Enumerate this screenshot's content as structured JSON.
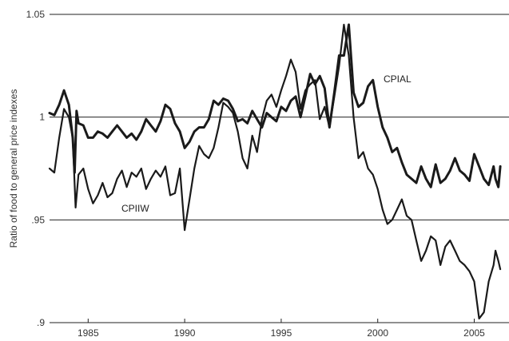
{
  "chart_data": {
    "type": "line",
    "title": "",
    "xlabel": "",
    "ylabel": "Ratio of food to general price indexes",
    "xlim": [
      1983.0,
      2006.8
    ],
    "ylim": [
      0.9,
      1.05
    ],
    "grid": "horizontal",
    "legend": "inline labels",
    "x_ticks": [
      1985,
      1990,
      1995,
      2000,
      2005
    ],
    "x_tick_labels": [
      "1985",
      "1990",
      "1995",
      "2000",
      "2005"
    ],
    "y_ticks": [
      0.9,
      0.95,
      1.0,
      1.05
    ],
    "y_tick_labels": [
      ".9",
      ".95",
      "1",
      "1.05"
    ],
    "series": [
      {
        "name": "CPIAL",
        "color": "#1a1a1a",
        "x": [
          1983.0,
          1983.25,
          1983.5,
          1983.75,
          1984.0,
          1984.2,
          1984.3,
          1984.4,
          1984.5,
          1984.75,
          1985.0,
          1985.25,
          1985.5,
          1985.75,
          1986.0,
          1986.25,
          1986.5,
          1986.75,
          1987.0,
          1987.25,
          1987.5,
          1987.75,
          1988.0,
          1988.25,
          1988.5,
          1988.75,
          1989.0,
          1989.25,
          1989.5,
          1989.75,
          1990.0,
          1990.25,
          1990.5,
          1990.75,
          1991.0,
          1991.25,
          1991.5,
          1991.75,
          1992.0,
          1992.25,
          1992.5,
          1992.75,
          1993.0,
          1993.25,
          1993.5,
          1993.75,
          1994.0,
          1994.25,
          1994.5,
          1994.75,
          1995.0,
          1995.25,
          1995.5,
          1995.75,
          1996.0,
          1996.25,
          1996.5,
          1996.75,
          1997.0,
          1997.25,
          1997.5,
          1997.75,
          1998.0,
          1998.25,
          1998.5,
          1998.75,
          1999.0,
          1999.25,
          1999.5,
          1999.75,
          2000.0,
          2000.25,
          2000.5,
          2000.75,
          2001.0,
          2001.25,
          2001.5,
          2001.75,
          2002.0,
          2002.25,
          2002.5,
          2002.75,
          2003.0,
          2003.25,
          2003.5,
          2003.75,
          2004.0,
          2004.25,
          2004.5,
          2004.75,
          2005.0,
          2005.25,
          2005.5,
          2005.75,
          2006.0,
          2006.1,
          2006.25,
          2006.35
        ],
        "values": [
          1.002,
          1.001,
          1.006,
          1.013,
          1.006,
          0.99,
          0.973,
          1.003,
          0.997,
          0.996,
          0.99,
          0.99,
          0.993,
          0.992,
          0.99,
          0.993,
          0.996,
          0.993,
          0.99,
          0.992,
          0.989,
          0.993,
          0.999,
          0.996,
          0.993,
          0.998,
          1.006,
          1.004,
          0.997,
          0.993,
          0.985,
          0.988,
          0.993,
          0.995,
          0.995,
          0.999,
          1.008,
          1.006,
          1.009,
          1.008,
          1.004,
          0.998,
          0.999,
          0.997,
          1.003,
          0.999,
          0.995,
          1.002,
          1.0,
          0.998,
          1.005,
          1.003,
          1.008,
          1.01,
          1.0,
          1.01,
          1.021,
          1.016,
          1.02,
          1.014,
          0.995,
          1.012,
          1.03,
          1.03,
          1.045,
          1.012,
          1.005,
          1.007,
          1.015,
          1.018,
          1.005,
          0.995,
          0.99,
          0.983,
          0.985,
          0.978,
          0.972,
          0.97,
          0.968,
          0.976,
          0.97,
          0.966,
          0.977,
          0.968,
          0.97,
          0.974,
          0.98,
          0.974,
          0.972,
          0.969,
          0.982,
          0.976,
          0.97,
          0.967,
          0.976,
          0.97,
          0.966,
          0.976
        ]
      },
      {
        "name": "CPIIW",
        "color": "#1a1a1a",
        "x": [
          1983.0,
          1983.25,
          1983.5,
          1983.75,
          1984.0,
          1984.2,
          1984.35,
          1984.5,
          1984.75,
          1985.0,
          1985.25,
          1985.5,
          1985.75,
          1986.0,
          1986.25,
          1986.5,
          1986.75,
          1987.0,
          1987.25,
          1987.5,
          1987.75,
          1988.0,
          1988.25,
          1988.5,
          1988.75,
          1989.0,
          1989.25,
          1989.5,
          1989.75,
          1990.0,
          1990.25,
          1990.5,
          1990.75,
          1991.0,
          1991.25,
          1991.5,
          1991.75,
          1992.0,
          1992.25,
          1992.5,
          1992.75,
          1993.0,
          1993.25,
          1993.5,
          1993.75,
          1994.0,
          1994.25,
          1994.5,
          1994.75,
          1995.0,
          1995.25,
          1995.5,
          1995.75,
          1996.0,
          1996.25,
          1996.5,
          1996.75,
          1997.0,
          1997.25,
          1997.5,
          1997.75,
          1998.0,
          1998.25,
          1998.5,
          1998.75,
          1999.0,
          1999.25,
          1999.5,
          1999.75,
          2000.0,
          2000.25,
          2000.5,
          2000.75,
          2001.0,
          2001.25,
          2001.5,
          2001.75,
          2002.0,
          2002.25,
          2002.5,
          2002.75,
          2003.0,
          2003.25,
          2003.5,
          2003.75,
          2004.0,
          2004.25,
          2004.5,
          2004.75,
          2005.0,
          2005.25,
          2005.5,
          2005.75,
          2006.0,
          2006.1,
          2006.25,
          2006.35
        ],
        "values": [
          0.975,
          0.973,
          0.99,
          1.004,
          1.0,
          0.99,
          0.956,
          0.972,
          0.975,
          0.965,
          0.958,
          0.962,
          0.968,
          0.961,
          0.963,
          0.97,
          0.974,
          0.966,
          0.973,
          0.971,
          0.975,
          0.965,
          0.97,
          0.974,
          0.971,
          0.976,
          0.962,
          0.963,
          0.975,
          0.945,
          0.96,
          0.975,
          0.986,
          0.982,
          0.98,
          0.985,
          0.995,
          1.007,
          1.005,
          1.002,
          0.993,
          0.98,
          0.975,
          0.991,
          0.983,
          0.999,
          1.008,
          1.011,
          1.005,
          1.013,
          1.02,
          1.028,
          1.022,
          1.004,
          1.013,
          1.016,
          1.018,
          0.999,
          1.005,
          0.995,
          1.01,
          1.025,
          1.045,
          1.03,
          1.0,
          0.98,
          0.983,
          0.975,
          0.972,
          0.965,
          0.955,
          0.948,
          0.95,
          0.955,
          0.96,
          0.952,
          0.95,
          0.94,
          0.93,
          0.935,
          0.942,
          0.94,
          0.928,
          0.937,
          0.94,
          0.935,
          0.93,
          0.928,
          0.925,
          0.92,
          0.902,
          0.905,
          0.92,
          0.928,
          0.935,
          0.93,
          0.926
        ]
      }
    ]
  }
}
